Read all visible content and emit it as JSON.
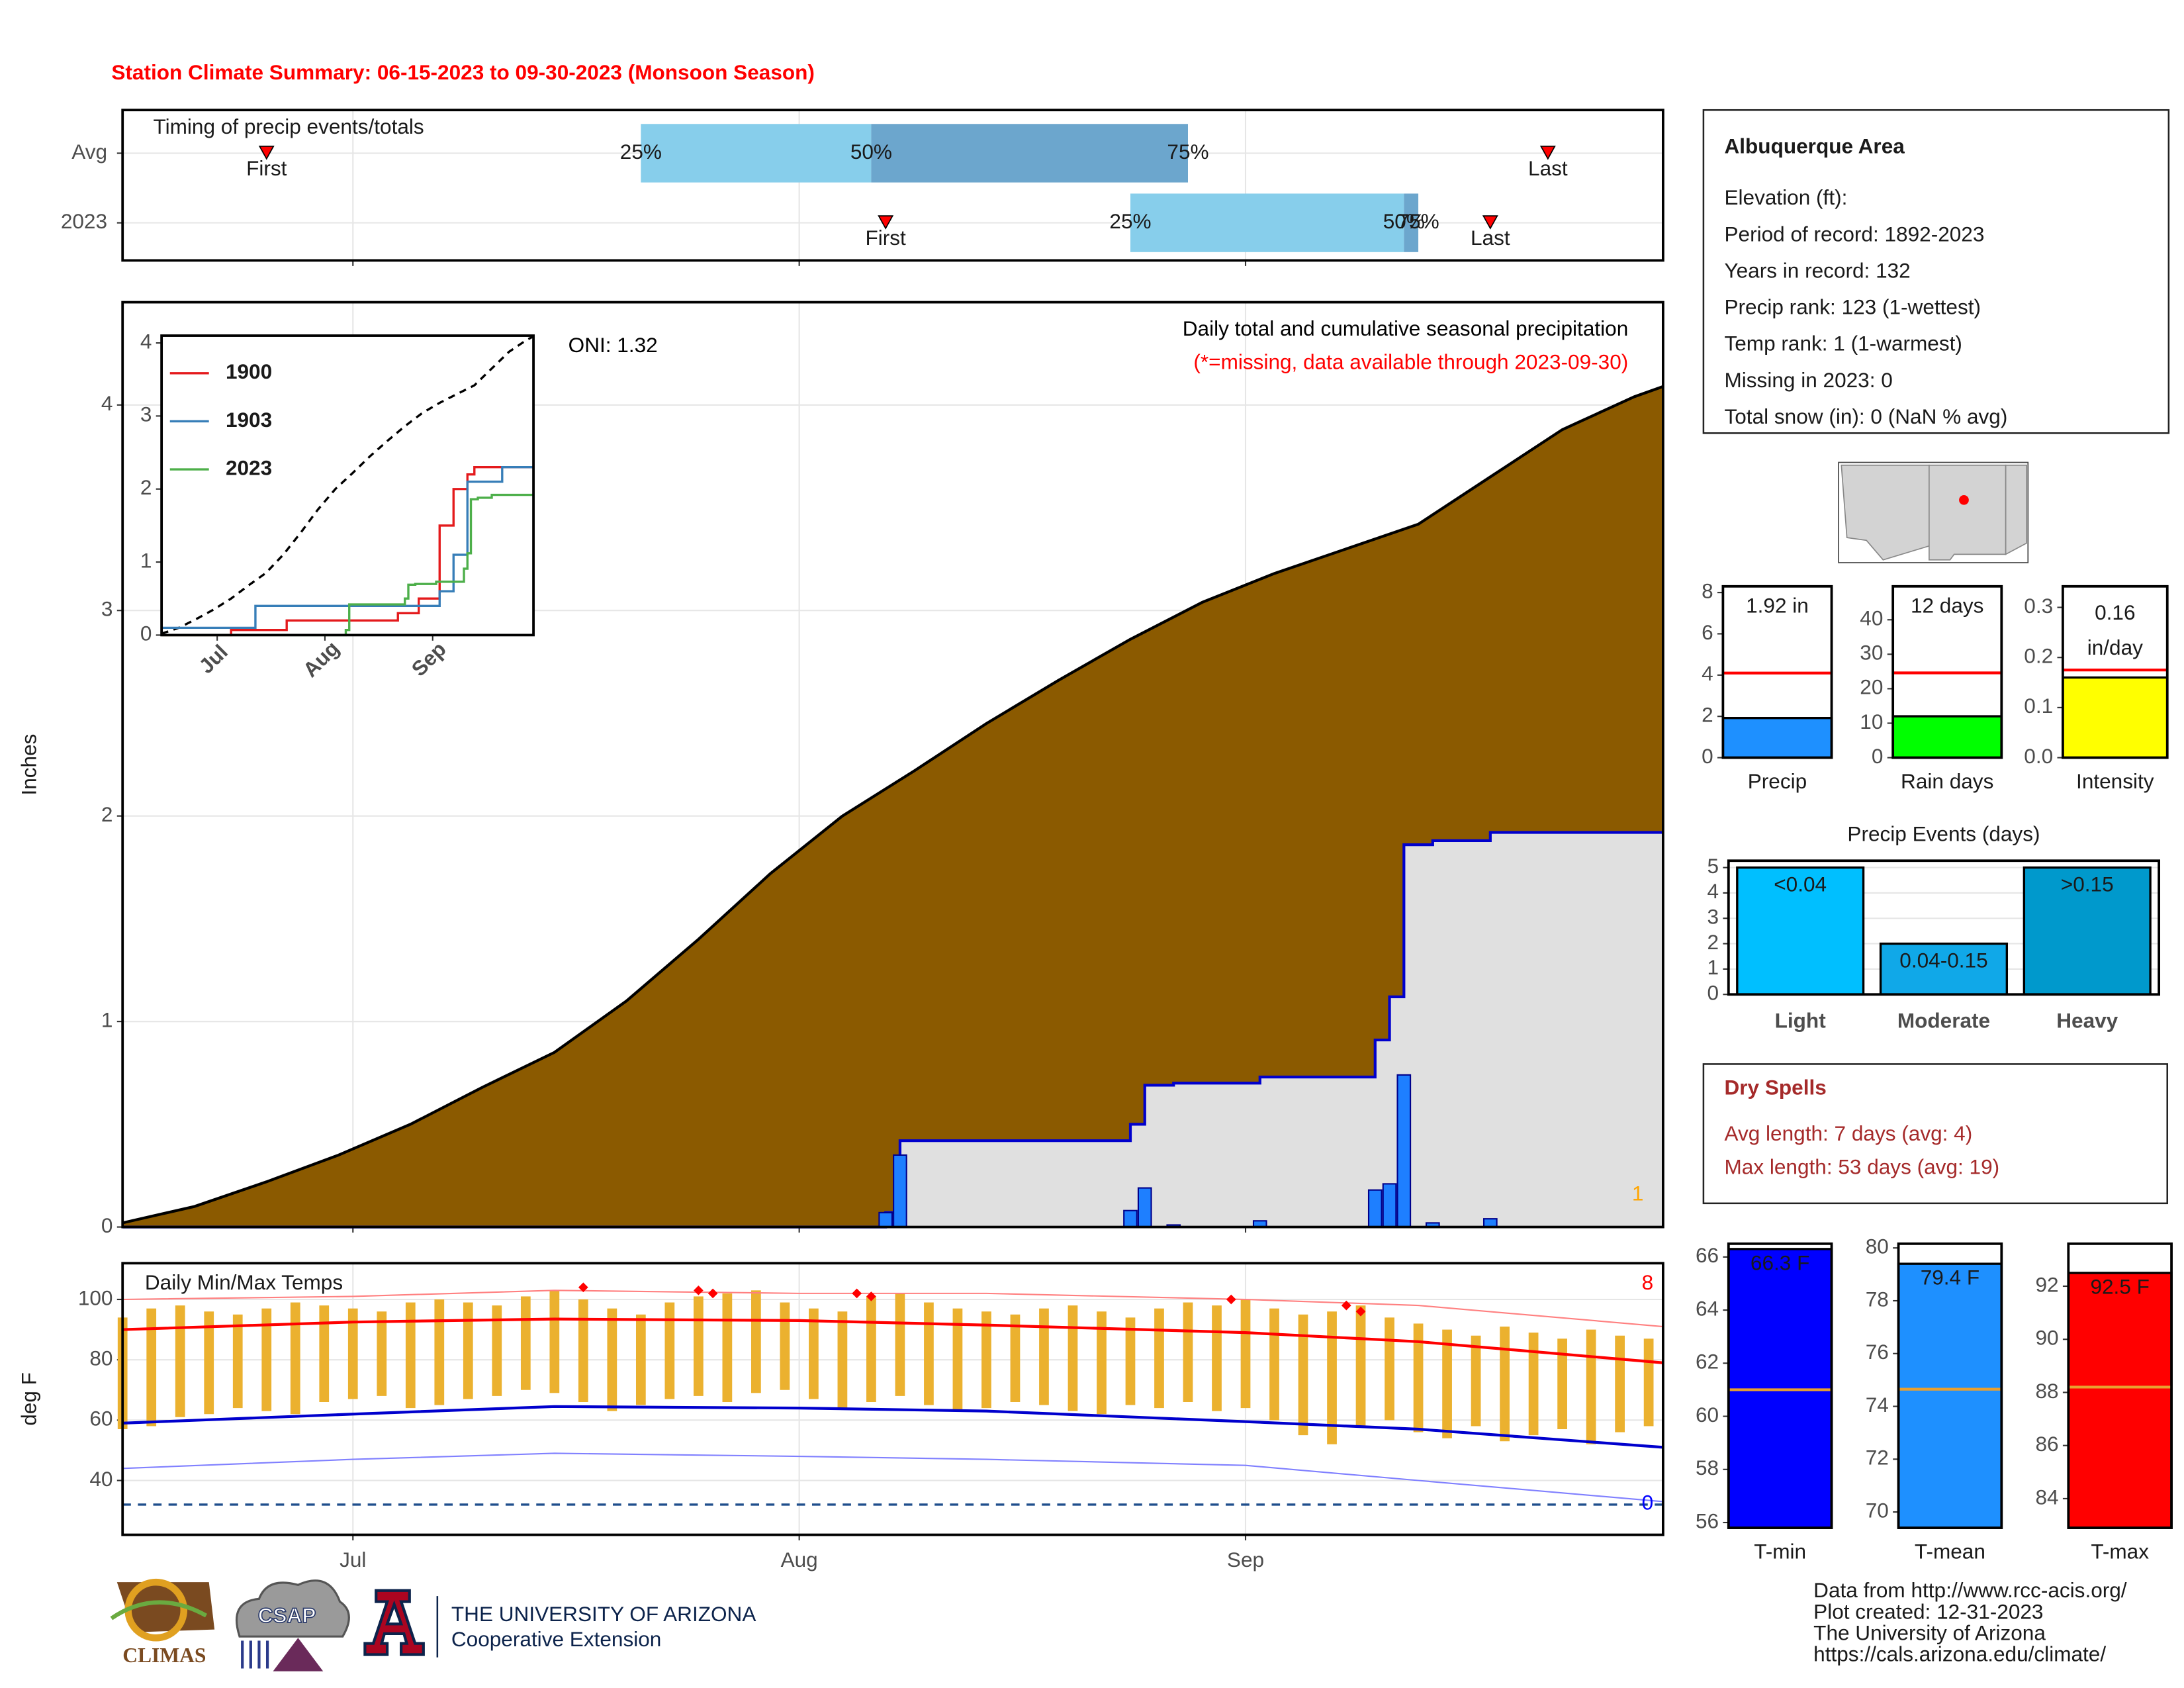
{
  "title": "Station Climate Summary: 06-15-2023 to 09-30-2023 (Monsoon Season)",
  "chart_data": [
    {
      "type": "timing",
      "label": "Timing of precip events/totals",
      "xlim": [
        0,
        107
      ],
      "categories": [
        "Avg",
        "2023"
      ],
      "first": [
        10,
        53
      ],
      "q25": [
        36,
        70
      ],
      "q50": [
        52,
        89
      ],
      "q75": [
        74,
        90
      ],
      "last": [
        99,
        95
      ],
      "labels": {
        "first": "First",
        "last": "Last",
        "q25": "25%",
        "q50": "50%",
        "q75": "75%"
      },
      "colors": [
        "#87ceeb",
        "#6ca6cd"
      ],
      "marker_color": "#ff0000"
    },
    {
      "type": "area",
      "ylabel": "Inches",
      "xlim": [
        0,
        107
      ],
      "ylim": [
        0,
        4.5
      ],
      "yticks": [
        0,
        1,
        2,
        3,
        4
      ],
      "grid": true,
      "annotations": [
        {
          "text": "ONI: 1.32",
          "color": "#000000"
        },
        {
          "text": "Daily total and cumulative seasonal precipitation",
          "color": "#000000"
        },
        {
          "text": "(*=missing, data available through 2023-09-30)",
          "color": "#ff0000"
        },
        {
          "text": "1",
          "color": "#ffa500"
        }
      ],
      "series": [
        {
          "color": "#8b5a00",
          "line_color": "#000000",
          "step": false,
          "x": [
            0,
            5,
            10,
            15,
            20,
            25,
            30,
            35,
            40,
            45,
            50,
            55,
            60,
            65,
            70,
            75,
            80,
            85,
            90,
            95,
            100,
            105,
            107
          ],
          "values": [
            0.02,
            0.1,
            0.22,
            0.35,
            0.5,
            0.68,
            0.85,
            1.1,
            1.4,
            1.72,
            2.0,
            2.22,
            2.45,
            2.66,
            2.86,
            3.04,
            3.18,
            3.3,
            3.42,
            3.65,
            3.88,
            4.04,
            4.09
          ]
        },
        {
          "color": "#e0e0e0",
          "line_color": "#0000cd",
          "step": true,
          "x": [
            0,
            53,
            54,
            70,
            71,
            73,
            79,
            87,
            88,
            89,
            91,
            95,
            107
          ],
          "values": [
            0,
            0.07,
            0.42,
            0.5,
            0.69,
            0.7,
            0.73,
            0.91,
            1.12,
            1.86,
            1.88,
            1.92,
            1.92
          ]
        }
      ],
      "bars": {
        "color": "#1e7fff",
        "x": [
          53,
          54,
          70,
          71,
          73,
          79,
          87,
          88,
          89,
          91,
          95
        ],
        "values": [
          0.07,
          0.35,
          0.08,
          0.19,
          0.01,
          0.03,
          0.18,
          0.21,
          0.74,
          0.02,
          0.04
        ]
      }
    },
    {
      "type": "line",
      "xlim": [
        0,
        107
      ],
      "ylim": [
        0,
        4.1
      ],
      "yticks": [
        0,
        1,
        2,
        3,
        4
      ],
      "grid": false,
      "xticks": [
        {
          "value": 16,
          "label": "Jul"
        },
        {
          "value": 47,
          "label": "Aug"
        },
        {
          "value": 78,
          "label": "Sep"
        }
      ],
      "reference": {
        "color": "#000000",
        "dashed": true,
        "x": [
          0,
          5,
          10,
          15,
          20,
          25,
          30,
          35,
          40,
          45,
          50,
          55,
          60,
          65,
          70,
          75,
          80,
          85,
          90,
          95,
          100,
          105,
          107
        ],
        "values": [
          0.02,
          0.1,
          0.22,
          0.35,
          0.5,
          0.68,
          0.85,
          1.1,
          1.4,
          1.72,
          2.0,
          2.22,
          2.45,
          2.66,
          2.86,
          3.04,
          3.18,
          3.3,
          3.42,
          3.65,
          3.88,
          4.04,
          4.09
        ]
      },
      "series": [
        {
          "name": "1900",
          "color": "#e41a1c",
          "x": [
            0,
            20,
            36,
            68,
            74,
            80,
            84,
            88,
            90,
            107
          ],
          "values": [
            0,
            0.07,
            0.2,
            0.3,
            0.5,
            1.5,
            2.0,
            2.2,
            2.3,
            2.3
          ]
        },
        {
          "name": "1903",
          "color": "#377eb8",
          "x": [
            0,
            27,
            54,
            80,
            84,
            88,
            98,
            107
          ],
          "values": [
            0.1,
            0.4,
            0.4,
            0.6,
            1.1,
            2.1,
            2.3,
            2.3
          ]
        },
        {
          "name": "2023",
          "color": "#4daf4a",
          "x": [
            0,
            53,
            54,
            70,
            71,
            73,
            79,
            87,
            88,
            89,
            91,
            95,
            107
          ],
          "values": [
            0,
            0.07,
            0.42,
            0.5,
            0.69,
            0.7,
            0.73,
            0.91,
            1.12,
            1.86,
            1.88,
            1.92,
            1.92
          ]
        }
      ]
    },
    {
      "type": "temps",
      "label": "Daily Min/Max Temps",
      "ylabel": "deg F",
      "xlim": [
        0,
        107
      ],
      "ylim": [
        22,
        112
      ],
      "yticks": [
        40,
        60,
        80,
        100
      ],
      "grid": true,
      "xticks": [
        {
          "value": 16,
          "label": "Jul"
        },
        {
          "value": 47,
          "label": "Aug"
        },
        {
          "value": 78,
          "label": "Sep"
        }
      ],
      "annotations": [
        {
          "text": "8",
          "color": "#ff0000"
        },
        {
          "text": "0",
          "color": "#0000ff"
        }
      ],
      "bar_color": "#ebb12f",
      "x": [
        0,
        2,
        4,
        6,
        8,
        10,
        12,
        14,
        16,
        18,
        20,
        22,
        24,
        26,
        28,
        30,
        32,
        34,
        36,
        38,
        40,
        42,
        44,
        46,
        48,
        50,
        52,
        54,
        56,
        58,
        60,
        62,
        64,
        66,
        68,
        70,
        72,
        74,
        76,
        78,
        80,
        82,
        84,
        86,
        88,
        90,
        92,
        94,
        96,
        98,
        100,
        102,
        104,
        106
      ],
      "max": [
        94,
        97,
        98,
        96,
        95,
        97,
        99,
        98,
        97,
        96,
        99,
        100,
        99,
        98,
        101,
        103,
        100,
        97,
        95,
        99,
        101,
        102,
        103,
        99,
        97,
        96,
        101,
        102,
        99,
        97,
        96,
        95,
        97,
        98,
        96,
        94,
        97,
        99,
        98,
        100,
        97,
        95,
        96,
        98,
        94,
        92,
        90,
        88,
        91,
        89,
        87,
        90,
        88,
        87
      ],
      "min": [
        57,
        58,
        61,
        62,
        64,
        63,
        62,
        66,
        67,
        68,
        64,
        65,
        67,
        68,
        70,
        69,
        66,
        63,
        65,
        67,
        68,
        66,
        69,
        70,
        67,
        64,
        66,
        68,
        65,
        63,
        64,
        66,
        65,
        63,
        62,
        65,
        64,
        66,
        63,
        64,
        60,
        55,
        52,
        58,
        60,
        56,
        54,
        58,
        53,
        55,
        57,
        52,
        56,
        58
      ],
      "lines": [
        {
          "color": "#ff8080",
          "width": 1,
          "x": [
            0,
            16,
            30,
            47,
            60,
            78,
            90,
            107
          ],
          "values": [
            100,
            101,
            103,
            102,
            102,
            100,
            98,
            91
          ]
        },
        {
          "color": "#8080ff",
          "width": 1,
          "x": [
            0,
            16,
            30,
            47,
            60,
            78,
            90,
            107
          ],
          "values": [
            44,
            47,
            49,
            48,
            47,
            45,
            40,
            33
          ]
        },
        {
          "color": "#ff0000",
          "width": 2,
          "x": [
            0,
            16,
            30,
            47,
            60,
            78,
            90,
            107
          ],
          "values": [
            90,
            92.5,
            93.5,
            93,
            91.5,
            89,
            86,
            79
          ]
        },
        {
          "color": "#0000cd",
          "width": 2,
          "x": [
            0,
            16,
            30,
            47,
            60,
            78,
            90,
            107
          ],
          "values": [
            59,
            62,
            64.5,
            64,
            63,
            59.5,
            57,
            51
          ]
        }
      ],
      "records": {
        "color": "#ff0000",
        "x": [
          32,
          40,
          41,
          51,
          52,
          77,
          85,
          86
        ],
        "values": [
          104,
          103,
          102,
          102,
          101,
          100,
          98,
          96
        ]
      },
      "hline": {
        "value": 32,
        "color": "#1f4e8c"
      }
    },
    {
      "type": "bar",
      "categories": [
        "Precip"
      ],
      "values": [
        1.92
      ],
      "value_labels": [
        "1.92 in"
      ],
      "label_position": "top",
      "color": "#1e90ff",
      "normal": 4.1,
      "normal_color": "#ff0000",
      "ylim": [
        0,
        8.3
      ],
      "yticks": [
        0,
        2,
        4,
        6,
        8
      ],
      "bar_width": 1
    },
    {
      "type": "bar",
      "categories": [
        "Rain days"
      ],
      "values": [
        12
      ],
      "value_labels": [
        "12 days"
      ],
      "label_position": "top",
      "color": "#00ff00",
      "normal": 24.6,
      "normal_color": "#ff0000",
      "ylim": [
        0,
        49.7
      ],
      "yticks": [
        0,
        10,
        20,
        30,
        40
      ],
      "bar_width": 1
    },
    {
      "type": "bar",
      "categories": [
        "Intensity"
      ],
      "values": [
        0.16
      ],
      "value_labels": [
        "0.16"
      ],
      "value_unit": "in/day",
      "label_position": "top",
      "color": "#ffff00",
      "normal": 0.175,
      "normal_color": "#ff0000",
      "ylim": [
        0,
        0.342
      ],
      "yticks": [
        {
          "value": 0,
          "label": "0.0"
        },
        0.1,
        0.2,
        0.3
      ],
      "bar_width": 1
    },
    {
      "type": "bar",
      "title": "Precip Events (days)",
      "categories": [
        "Light",
        "Moderate",
        "Heavy"
      ],
      "values": [
        5,
        2,
        5
      ],
      "bin_labels": [
        "<0.04",
        "0.04-0.15",
        ">0.15"
      ],
      "colors": [
        "#00bfff",
        "#10a8e8",
        "#0099cc"
      ],
      "category_bold": true,
      "ylim": [
        0,
        5.27
      ],
      "yticks": [
        0,
        1,
        2,
        3,
        4,
        5
      ],
      "grid": true,
      "bar_width": 0.88
    },
    {
      "type": "bar",
      "categories": [
        "T-min"
      ],
      "values": [
        66.3
      ],
      "value_labels": [
        "66.3 F"
      ],
      "label_position": "bar",
      "color": "#0000ff",
      "normal": 61,
      "normal_color": "#e8a030",
      "ylim": [
        55.8,
        66.5
      ],
      "yticks": [
        56,
        58,
        60,
        62,
        64,
        66
      ],
      "bar_width": 1
    },
    {
      "type": "bar",
      "categories": [
        "T-mean"
      ],
      "values": [
        79.4
      ],
      "value_labels": [
        "79.4 F"
      ],
      "label_position": "bar",
      "color": "#1e90ff",
      "normal": 74.65,
      "normal_color": "#e8a030",
      "ylim": [
        69.4,
        80.16
      ],
      "yticks": [
        70,
        72,
        74,
        76,
        78,
        80
      ],
      "bar_width": 1
    },
    {
      "type": "bar",
      "categories": [
        "T-max"
      ],
      "values": [
        92.5
      ],
      "value_labels": [
        "92.5 F"
      ],
      "label_position": "bar",
      "color": "#ff0000",
      "normal": 88.2,
      "normal_color": "#e8a030",
      "ylim": [
        82.9,
        93.6
      ],
      "yticks": [
        84,
        86,
        88,
        90,
        92
      ],
      "bar_width": 1
    }
  ],
  "station": {
    "title": "Albuquerque Area",
    "lines": [
      "Elevation (ft):",
      "Period of record: 1892-2023",
      "Years in record: 132",
      "Precip rank: 123 (1-wettest)",
      "Temp rank: 1 (1-warmest)",
      "Missing in 2023: 0",
      "Total snow (in): 0 (NaN % avg)"
    ]
  },
  "dry_spells": {
    "title": "Dry Spells",
    "lines": [
      "Avg length: 7 days (avg: 4)",
      "Max length: 53 days (avg: 19)"
    ]
  },
  "footer": {
    "lines": [
      "Data from http://www.rcc-acis.org/",
      "Plot created: 12-31-2023",
      "The University of Arizona",
      "https://cals.arizona.edu/climate/"
    ]
  },
  "logos": {
    "climas": "CLIMAS",
    "csap": "CSAP",
    "university": "THE UNIVERSITY OF ARIZONA",
    "extension": "Cooperative Extension"
  }
}
